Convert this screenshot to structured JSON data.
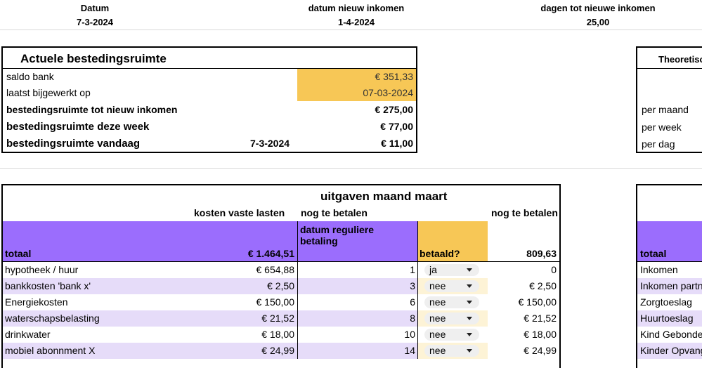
{
  "header": {
    "datum_label": "Datum",
    "datum_value": "7-3-2024",
    "nieuw_label": "datum nieuw inkomen",
    "nieuw_value": "1-4-2024",
    "dagen_label": "dagen tot nieuwe inkomen",
    "dagen_value": "25,00"
  },
  "bestedingsruimte": {
    "title": "Actuele bestedingsruimte",
    "saldo_label": "saldo bank",
    "saldo_value": "€ 351,33",
    "bijgewerkt_label": "laatst bijgewerkt op",
    "bijgewerkt_value": "07-03-2024",
    "tot_nieuw_label": "bestedingsruimte tot nieuw inkomen",
    "tot_nieuw_value": "€ 275,00",
    "week_label": "bestedingsruimte deze week",
    "week_value": "€ 77,00",
    "vandaag_label": "bestedingsruimte vandaag",
    "vandaag_date": "7-3-2024",
    "vandaag_value": "€ 11,00"
  },
  "theoretisch": {
    "title": "Theoretisch",
    "per_maand": "per maand",
    "per_week": "per week",
    "per_dag": "per dag"
  },
  "uitgaven": {
    "title": "uitgaven maand maart",
    "col_kosten": "kosten vaste lasten",
    "col_nog1": "nog te betalen",
    "col_nog2": "nog te betalen",
    "col_datum": "datum reguliere betaling",
    "col_betaald": "betaald?",
    "totaal_label": "totaal",
    "totaal_value": "€ 1.464,51",
    "totaal_nog": "809,63",
    "rows": [
      {
        "name": "hypotheek / huur",
        "amount": "€ 654,88",
        "day": "1",
        "paid": "ja",
        "remaining": "0"
      },
      {
        "name": "bankkosten 'bank x'",
        "amount": "€ 2,50",
        "day": "3",
        "paid": "nee",
        "remaining": "€ 2,50"
      },
      {
        "name": "Energiekosten",
        "amount": "€ 150,00",
        "day": "6",
        "paid": "nee",
        "remaining": "€ 150,00"
      },
      {
        "name": "waterschapsbelasting",
        "amount": "€ 21,52",
        "day": "8",
        "paid": "nee",
        "remaining": "€ 21,52"
      },
      {
        "name": "drinkwater",
        "amount": "€ 18,00",
        "day": "10",
        "paid": "nee",
        "remaining": "€ 18,00"
      },
      {
        "name": "mobiel abonnment X",
        "amount": "€ 24,99",
        "day": "14",
        "paid": "nee",
        "remaining": "€ 24,99"
      }
    ]
  },
  "inkomsten": {
    "totaal_label": "totaal",
    "rows": [
      "Inkomen",
      "Inkomen partner",
      "Zorgtoeslag",
      "Huurtoeslag",
      "Kind Gebonden",
      "Kinder Opvang"
    ]
  },
  "colors": {
    "yellow": "#f7c756",
    "purple": "#9b6dfd",
    "lavender": "#e6dcf9"
  }
}
